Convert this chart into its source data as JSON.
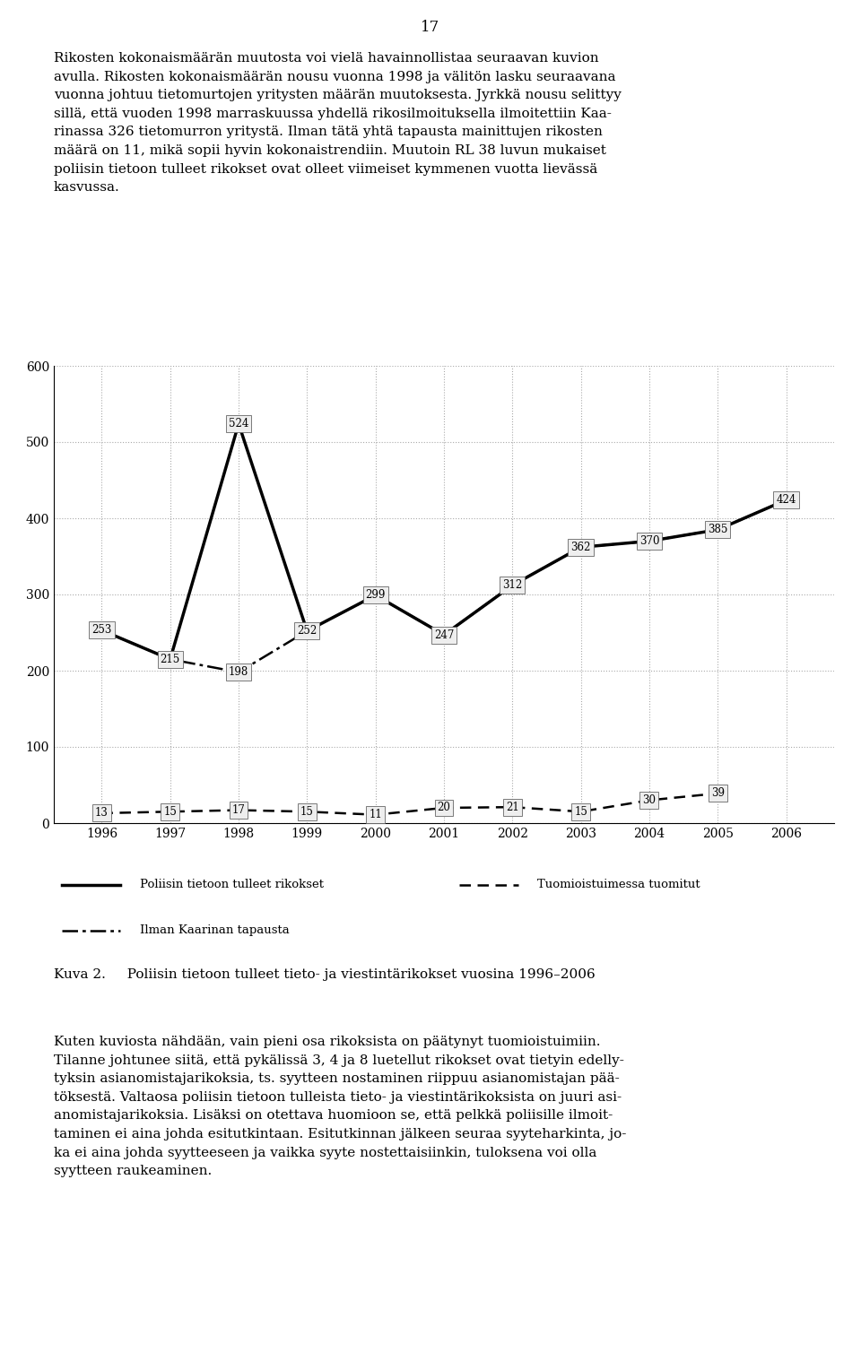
{
  "years": [
    1996,
    1997,
    1998,
    1999,
    2000,
    2001,
    2002,
    2003,
    2004,
    2005,
    2006
  ],
  "poliisin": [
    253,
    215,
    524,
    252,
    299,
    247,
    312,
    362,
    370,
    385,
    424
  ],
  "tuomio": [
    13,
    15,
    17,
    15,
    11,
    20,
    21,
    15,
    30,
    39
  ],
  "ilman_kaarina": [
    253,
    215,
    198,
    252,
    299,
    247,
    312,
    362,
    370,
    385,
    424
  ],
  "ylim": [
    0,
    600
  ],
  "yticks": [
    0,
    100,
    200,
    300,
    400,
    500,
    600
  ],
  "page_number": "17",
  "para1_lines": [
    "Rikosten kokonaismäärän muutosta voi vielä havainnollistaa seuraavan kuvion",
    "avulla. Rikosten kokonaismäärän nousu vuonna 1998 ja välitön lasku seuraavana",
    "vuonna johtuu tietomurtojen yritysten määrän muutoksesta. Jyrkkä nousu selittyy",
    "sillä, että vuoden 1998 marraskuussa yhdellä rikosilmoituksella ilmoitettiin Kaa-",
    "rinassa 326 tietomurron yritystä. Ilman tätä yhtä tapausta mainittujen rikosten",
    "määrä on 11, mikä sopii hyvin kokonaistrendiin. Muutoin RL 38 luvun mukaiset",
    "poliisin tietoon tulleet rikokset ovat olleet viimeiset kymmenen vuotta lievässä",
    "kasvussa."
  ],
  "legend_line1": "Poliisin tietoon tulleet rikokset",
  "legend_line2": "Tuomioistuimessa tuomitut",
  "legend_line3": "Ilman Kaarinan tapausta",
  "caption_label": "Kuva 2.",
  "caption_text": "  Poliisin tietoon tulleet tieto- ja viestintärikokset vuosina 1996–2006",
  "para2_lines": [
    "Kuten kuviosta nähdään, vain pieni osa rikoksista on päätynyt tuomioistuimiin.",
    "Tilanne johtunee siitä, että pykälissä 3, 4 ja 8 luetellut rikokset ovat tietyin edelly-",
    "tyksin asianomistajarikoksia, ts. syytteen nostaminen riippuu asianomistajan pää-",
    "töksestä. Valtaosa poliisin tietoon tulleista tieto- ja viestintärikoksista on juuri asi-",
    "anomistajarikoksia. Lisäksi on otettava huomioon se, että pelkkä poliisille ilmoit-",
    "taminen ei aina johda esitutkintaan. Esitutkinnan jälkeen seuraa syyteharkinta, jo-",
    "ka ei aina johda syytteeseen ja vaikka syyte nostettaisiinkin, tuloksena voi olla",
    "syytteen raukeaminen."
  ],
  "bg_color": "#ffffff",
  "text_color": "#000000",
  "grid_color": "#aaaaaa",
  "annotation_facecolor": "#eeeeee",
  "annotation_edgecolor": "#666666",
  "font_family": "DejaVu Serif"
}
